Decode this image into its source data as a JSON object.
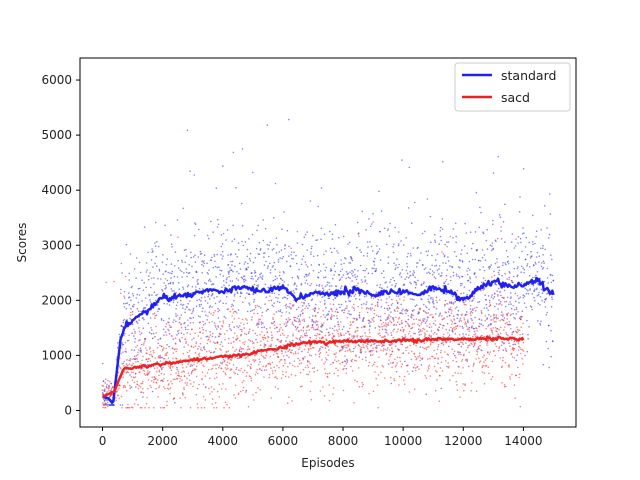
{
  "chart_data": {
    "type": "scatter",
    "xlabel": "Episodes",
    "ylabel": "Scores",
    "xlim": [
      -750,
      15750
    ],
    "ylim": [
      -300,
      6400
    ],
    "x_ticks": [
      0,
      2000,
      4000,
      6000,
      8000,
      10000,
      12000,
      14000
    ],
    "y_ticks": [
      0,
      1000,
      2000,
      3000,
      4000,
      5000,
      6000
    ],
    "grid": false,
    "legend_position": "top-right",
    "series": [
      {
        "name": "standard",
        "color": "#2222ee",
        "scatter_x_range": [
          0,
          15000
        ],
        "scatter_y_range": [
          100,
          6100
        ],
        "smoothed_line": {
          "x": [
            0,
            200,
            350,
            450,
            600,
            800,
            1000,
            1200,
            1500,
            1800,
            2000,
            2200,
            2500,
            3000,
            3500,
            4000,
            4500,
            5000,
            5500,
            6000,
            6500,
            7000,
            7500,
            8000,
            8500,
            9000,
            9500,
            10000,
            10500,
            11000,
            11500,
            12000,
            12500,
            13000,
            13500,
            14000,
            14500,
            15000
          ],
          "y": [
            250,
            220,
            120,
            600,
            1300,
            1580,
            1620,
            1750,
            1800,
            1950,
            2100,
            2000,
            2100,
            2100,
            2200,
            2150,
            2250,
            2200,
            2150,
            2250,
            2000,
            2150,
            2100,
            2150,
            2200,
            2100,
            2150,
            2150,
            2100,
            2250,
            2150,
            2000,
            2200,
            2350,
            2250,
            2300,
            2350,
            2100
          ]
        }
      },
      {
        "name": "sacd",
        "color": "#ee2222",
        "scatter_x_range": [
          0,
          14000
        ],
        "scatter_y_range": [
          50,
          3600
        ],
        "smoothed_line": {
          "x": [
            0,
            200,
            400,
            500,
            700,
            1000,
            1500,
            2000,
            2500,
            3000,
            3500,
            4000,
            4500,
            5000,
            5500,
            6000,
            6500,
            7000,
            7500,
            8000,
            8500,
            9000,
            9500,
            10000,
            10500,
            11000,
            11500,
            12000,
            12500,
            13000,
            13500,
            14000
          ],
          "y": [
            250,
            300,
            350,
            500,
            750,
            780,
            820,
            850,
            880,
            920,
            950,
            980,
            1000,
            1050,
            1100,
            1150,
            1200,
            1250,
            1230,
            1270,
            1250,
            1270,
            1250,
            1280,
            1270,
            1290,
            1300,
            1290,
            1300,
            1310,
            1300,
            1300
          ]
        }
      }
    ]
  }
}
